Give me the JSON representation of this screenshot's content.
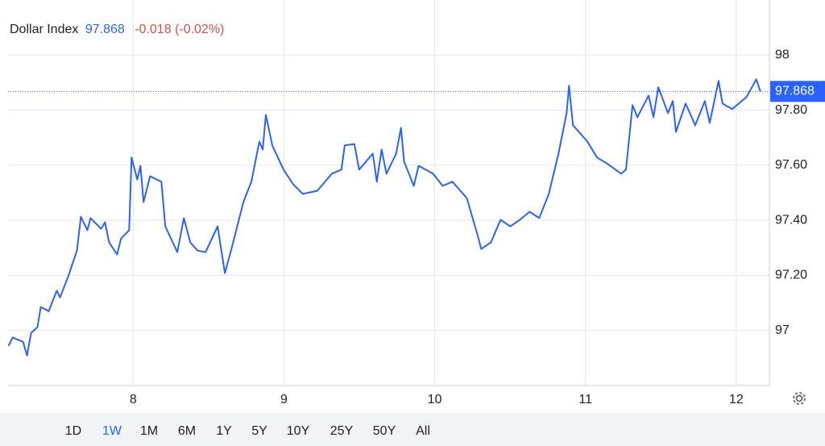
{
  "header": {
    "title": "Dollar Index",
    "price": 97.868,
    "change": "-0.018 (-0.02%)"
  },
  "chart_data": {
    "type": "line",
    "color": "#2962ff",
    "grid": true,
    "x": [
      7.173,
      7.2,
      7.269,
      7.296,
      7.323,
      7.365,
      7.387,
      7.44,
      7.493,
      7.515,
      7.573,
      7.627,
      7.653,
      7.696,
      7.717,
      7.787,
      7.813,
      7.84,
      7.893,
      7.92,
      7.973,
      7.989,
      8.027,
      8.048,
      8.069,
      8.112,
      8.187,
      8.213,
      8.293,
      8.336,
      8.379,
      8.427,
      8.48,
      8.56,
      8.608,
      8.656,
      8.731,
      8.784,
      8.837,
      8.859,
      8.88,
      8.923,
      8.997,
      9.061,
      9.125,
      9.221,
      9.317,
      9.381,
      9.403,
      9.467,
      9.499,
      9.589,
      9.616,
      9.648,
      9.68,
      9.744,
      9.776,
      9.797,
      9.861,
      9.893,
      9.989,
      10.053,
      10.117,
      10.213,
      10.283,
      10.309,
      10.373,
      10.437,
      10.501,
      10.565,
      10.629,
      10.693,
      10.757,
      10.821,
      10.875,
      10.891,
      10.917,
      11.013,
      11.077,
      11.141,
      11.237,
      11.269,
      11.312,
      11.344,
      11.419,
      11.451,
      11.483,
      11.547,
      11.579,
      11.6,
      11.664,
      11.728,
      11.792,
      11.824,
      11.883,
      11.909,
      11.973,
      12.069,
      12.133,
      12.16
    ],
    "values": [
      96.944,
      96.974,
      96.959,
      96.909,
      96.991,
      97.012,
      97.085,
      97.07,
      97.144,
      97.12,
      97.202,
      97.29,
      97.413,
      97.364,
      97.408,
      97.369,
      97.393,
      97.32,
      97.276,
      97.334,
      97.364,
      97.628,
      97.548,
      97.598,
      97.466,
      97.56,
      97.54,
      97.378,
      97.284,
      97.408,
      97.32,
      97.29,
      97.284,
      97.378,
      97.208,
      97.305,
      97.466,
      97.54,
      97.686,
      97.657,
      97.783,
      97.672,
      97.584,
      97.531,
      97.496,
      97.507,
      97.569,
      97.584,
      97.672,
      97.677,
      97.584,
      97.642,
      97.54,
      97.657,
      97.569,
      97.642,
      97.736,
      97.613,
      97.525,
      97.598,
      97.569,
      97.525,
      97.54,
      97.481,
      97.349,
      97.296,
      97.32,
      97.402,
      97.378,
      97.402,
      97.431,
      97.408,
      97.496,
      97.642,
      97.789,
      97.889,
      97.745,
      97.686,
      97.628,
      97.607,
      97.569,
      97.584,
      97.818,
      97.774,
      97.853,
      97.774,
      97.883,
      97.789,
      97.833,
      97.721,
      97.824,
      97.745,
      97.833,
      97.754,
      97.906,
      97.824,
      97.804,
      97.848,
      97.912,
      97.868
    ],
    "xlim": [
      7.17,
      12.22
    ],
    "xticks": [
      8,
      9,
      10,
      11,
      12
    ],
    "ylim": [
      96.8,
      98.2
    ],
    "yticks": [
      97,
      {
        "value": 97.2,
        "label": "97.20"
      },
      {
        "value": 97.4,
        "label": "97.40"
      },
      {
        "value": 97.6,
        "label": "97.60"
      },
      {
        "value": 97.8,
        "label": "97.80"
      },
      98
    ]
  },
  "ranges": {
    "options": [
      "1D",
      "1W",
      "1M",
      "6M",
      "1Y",
      "5Y",
      "10Y",
      "25Y",
      "50Y",
      "All"
    ],
    "selected": 1
  }
}
